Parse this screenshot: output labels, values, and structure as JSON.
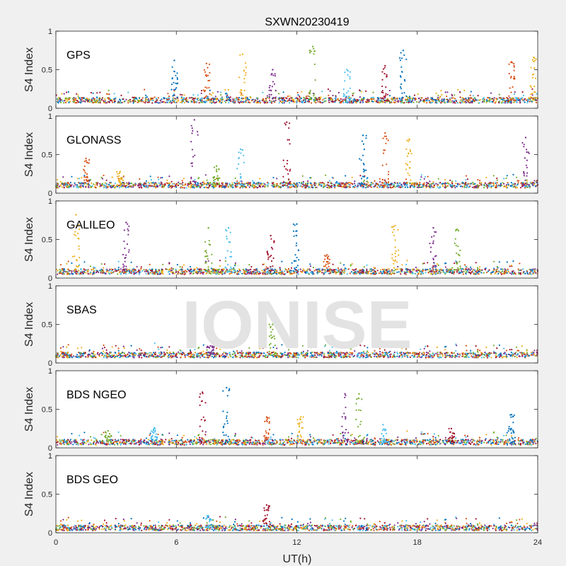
{
  "title": "SXWN20230419",
  "watermark": "IONISE",
  "chart_data": {
    "type": "scatter",
    "xlabel": "UT(h)",
    "xlim": [
      0,
      24
    ],
    "xticks": [
      "0",
      "6",
      "12",
      "18",
      "24"
    ],
    "ylabel": "S4 Index",
    "ylim": [
      0,
      1
    ],
    "yticks": [
      "0",
      "0.5",
      "1"
    ],
    "panels": [
      {
        "name": "GPS",
        "baseline": 0.1,
        "spikes": [
          [
            5.9,
            0.62
          ],
          [
            7.5,
            0.58
          ],
          [
            9.3,
            0.7
          ],
          [
            10.8,
            0.5
          ],
          [
            12.8,
            0.8
          ],
          [
            14.5,
            0.5
          ],
          [
            16.4,
            0.55
          ],
          [
            17.3,
            0.75
          ],
          [
            22.7,
            0.6
          ],
          [
            23.8,
            0.66
          ]
        ]
      },
      {
        "name": "GLONASS",
        "baseline": 0.1,
        "spikes": [
          [
            1.5,
            0.45
          ],
          [
            3.2,
            0.28
          ],
          [
            6.9,
            0.95
          ],
          [
            8.0,
            0.35
          ],
          [
            9.2,
            0.57
          ],
          [
            11.5,
            0.92
          ],
          [
            15.3,
            0.75
          ],
          [
            16.4,
            0.78
          ],
          [
            17.6,
            0.7
          ],
          [
            23.4,
            0.72
          ]
        ]
      },
      {
        "name": "GALILEO",
        "baseline": 0.08,
        "spikes": [
          [
            1.0,
            0.82
          ],
          [
            3.5,
            0.72
          ],
          [
            7.6,
            0.65
          ],
          [
            8.6,
            0.65
          ],
          [
            10.7,
            0.55
          ],
          [
            12.0,
            0.7
          ],
          [
            13.5,
            0.3
          ],
          [
            16.9,
            0.68
          ],
          [
            18.8,
            0.65
          ],
          [
            20.0,
            0.63
          ]
        ]
      },
      {
        "name": "SBAS",
        "baseline": 0.1,
        "spikes": [
          [
            7.7,
            0.22
          ],
          [
            10.8,
            0.5
          ]
        ]
      },
      {
        "name": "BDS NGEO",
        "baseline": 0.07,
        "spikes": [
          [
            2.6,
            0.22
          ],
          [
            4.9,
            0.26
          ],
          [
            7.3,
            0.72
          ],
          [
            8.5,
            0.78
          ],
          [
            10.5,
            0.4
          ],
          [
            12.2,
            0.4
          ],
          [
            14.4,
            0.7
          ],
          [
            15.1,
            0.7
          ],
          [
            16.3,
            0.3
          ],
          [
            19.7,
            0.25
          ],
          [
            22.7,
            0.43
          ]
        ]
      },
      {
        "name": "BDS GEO",
        "baseline": 0.06,
        "spikes": [
          [
            7.6,
            0.22
          ],
          [
            10.5,
            0.36
          ]
        ]
      }
    ],
    "series_colors": [
      "#0072bd",
      "#d95319",
      "#edb120",
      "#7e2f8e",
      "#77ac30",
      "#4dbeee",
      "#a2142f"
    ]
  }
}
